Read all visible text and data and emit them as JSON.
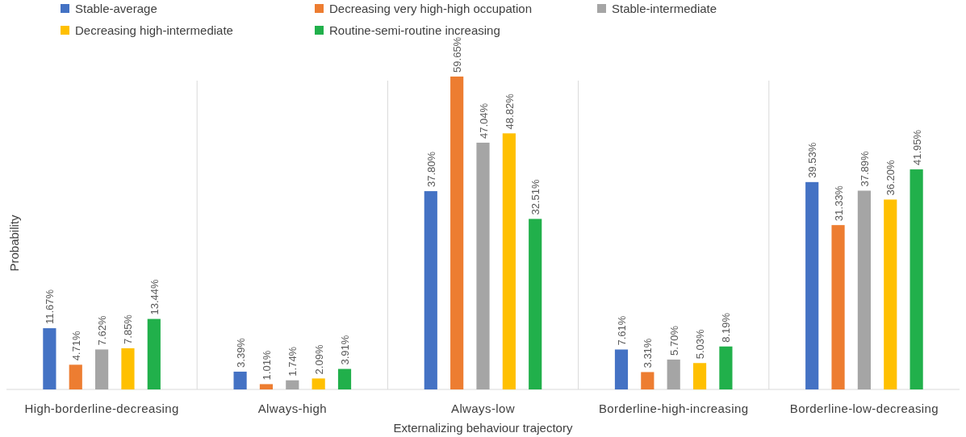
{
  "chart_data": {
    "type": "bar",
    "xlabel": "Externalizing behaviour trajectory",
    "ylabel": "Probability",
    "categories": [
      "High-borderline-decreasing",
      "Always-high",
      "Always-low",
      "Borderline-high-increasing",
      "Borderline-low-decreasing"
    ],
    "series": [
      {
        "name": "Stable-average",
        "color": "#4472c4",
        "values": [
          11.67,
          3.39,
          37.8,
          7.61,
          39.53
        ],
        "value_labels": [
          "11.67%",
          "3.39%",
          "37.80%",
          "7.61%",
          "39.53%"
        ]
      },
      {
        "name": "Decreasing very high-high occupation",
        "color": "#ed7d31",
        "values": [
          4.71,
          1.01,
          59.65,
          3.31,
          31.33
        ],
        "value_labels": [
          "4.71%",
          "1.01%",
          "59.65%",
          "3.31%",
          "31.33%"
        ]
      },
      {
        "name": "Stable-intermediate",
        "color": "#a5a5a5",
        "values": [
          7.62,
          1.74,
          47.04,
          5.7,
          37.89
        ],
        "value_labels": [
          "7.62%",
          "1.74%",
          "47.04%",
          "5.70%",
          "37.89%"
        ]
      },
      {
        "name": "Decreasing high-intermediate",
        "color": "#ffc000",
        "values": [
          7.85,
          2.09,
          48.82,
          5.03,
          36.2
        ],
        "value_labels": [
          "7.85%",
          "2.09%",
          "48.82%",
          "5.03%",
          "36.20%"
        ]
      },
      {
        "name": "Routine-semi-routine increasing",
        "color": "#21b04b",
        "values": [
          13.44,
          3.91,
          32.51,
          8.19,
          41.95
        ],
        "value_labels": [
          "13.44%",
          "3.91%",
          "32.51%",
          "8.19%",
          "41.95%"
        ]
      }
    ],
    "legend": "top",
    "grid": "x"
  }
}
